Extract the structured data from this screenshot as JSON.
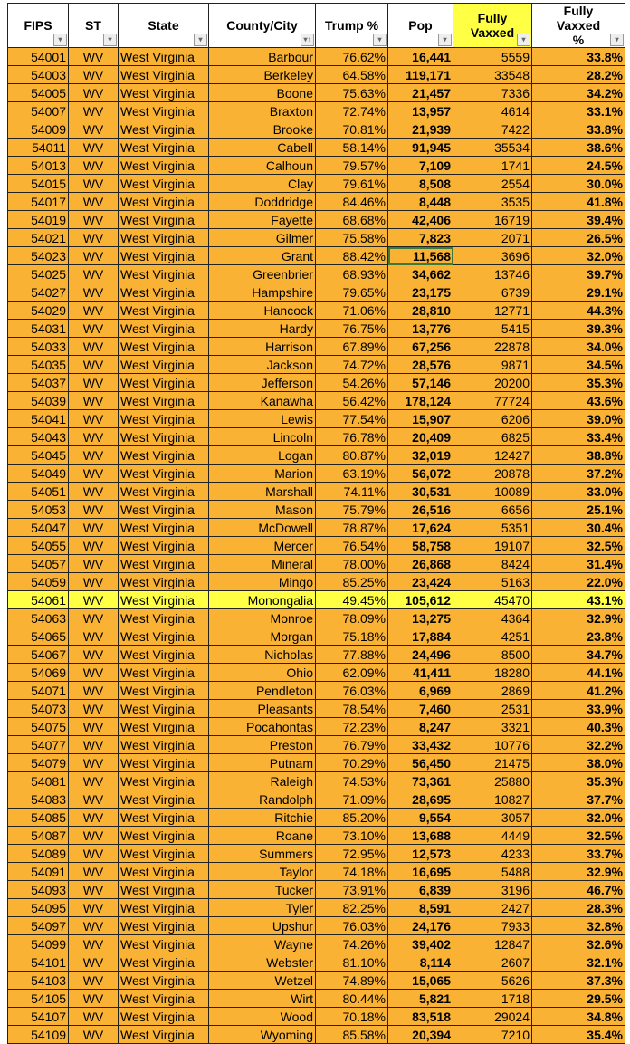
{
  "columns": [
    "FIPS",
    "ST",
    "State",
    "County/City",
    "Trump %",
    "Pop",
    "Fully Vaxxed",
    "Fully Vaxxed %"
  ],
  "highlight_color": "#ffff44",
  "row_color": "#f9b234",
  "highlighted_row": "Monongalia",
  "selected_cell": {
    "county": "Grant",
    "column": "Pop"
  },
  "rows": [
    [
      "54001",
      "WV",
      "West Virginia",
      "Barbour",
      "76.62%",
      "16,441",
      "5559",
      "33.8%"
    ],
    [
      "54003",
      "WV",
      "West Virginia",
      "Berkeley",
      "64.58%",
      "119,171",
      "33548",
      "28.2%"
    ],
    [
      "54005",
      "WV",
      "West Virginia",
      "Boone",
      "75.63%",
      "21,457",
      "7336",
      "34.2%"
    ],
    [
      "54007",
      "WV",
      "West Virginia",
      "Braxton",
      "72.74%",
      "13,957",
      "4614",
      "33.1%"
    ],
    [
      "54009",
      "WV",
      "West Virginia",
      "Brooke",
      "70.81%",
      "21,939",
      "7422",
      "33.8%"
    ],
    [
      "54011",
      "WV",
      "West Virginia",
      "Cabell",
      "58.14%",
      "91,945",
      "35534",
      "38.6%"
    ],
    [
      "54013",
      "WV",
      "West Virginia",
      "Calhoun",
      "79.57%",
      "7,109",
      "1741",
      "24.5%"
    ],
    [
      "54015",
      "WV",
      "West Virginia",
      "Clay",
      "79.61%",
      "8,508",
      "2554",
      "30.0%"
    ],
    [
      "54017",
      "WV",
      "West Virginia",
      "Doddridge",
      "84.46%",
      "8,448",
      "3535",
      "41.8%"
    ],
    [
      "54019",
      "WV",
      "West Virginia",
      "Fayette",
      "68.68%",
      "42,406",
      "16719",
      "39.4%"
    ],
    [
      "54021",
      "WV",
      "West Virginia",
      "Gilmer",
      "75.58%",
      "7,823",
      "2071",
      "26.5%"
    ],
    [
      "54023",
      "WV",
      "West Virginia",
      "Grant",
      "88.42%",
      "11,568",
      "3696",
      "32.0%"
    ],
    [
      "54025",
      "WV",
      "West Virginia",
      "Greenbrier",
      "68.93%",
      "34,662",
      "13746",
      "39.7%"
    ],
    [
      "54027",
      "WV",
      "West Virginia",
      "Hampshire",
      "79.65%",
      "23,175",
      "6739",
      "29.1%"
    ],
    [
      "54029",
      "WV",
      "West Virginia",
      "Hancock",
      "71.06%",
      "28,810",
      "12771",
      "44.3%"
    ],
    [
      "54031",
      "WV",
      "West Virginia",
      "Hardy",
      "76.75%",
      "13,776",
      "5415",
      "39.3%"
    ],
    [
      "54033",
      "WV",
      "West Virginia",
      "Harrison",
      "67.89%",
      "67,256",
      "22878",
      "34.0%"
    ],
    [
      "54035",
      "WV",
      "West Virginia",
      "Jackson",
      "74.72%",
      "28,576",
      "9871",
      "34.5%"
    ],
    [
      "54037",
      "WV",
      "West Virginia",
      "Jefferson",
      "54.26%",
      "57,146",
      "20200",
      "35.3%"
    ],
    [
      "54039",
      "WV",
      "West Virginia",
      "Kanawha",
      "56.42%",
      "178,124",
      "77724",
      "43.6%"
    ],
    [
      "54041",
      "WV",
      "West Virginia",
      "Lewis",
      "77.54%",
      "15,907",
      "6206",
      "39.0%"
    ],
    [
      "54043",
      "WV",
      "West Virginia",
      "Lincoln",
      "76.78%",
      "20,409",
      "6825",
      "33.4%"
    ],
    [
      "54045",
      "WV",
      "West Virginia",
      "Logan",
      "80.87%",
      "32,019",
      "12427",
      "38.8%"
    ],
    [
      "54049",
      "WV",
      "West Virginia",
      "Marion",
      "63.19%",
      "56,072",
      "20878",
      "37.2%"
    ],
    [
      "54051",
      "WV",
      "West Virginia",
      "Marshall",
      "74.11%",
      "30,531",
      "10089",
      "33.0%"
    ],
    [
      "54053",
      "WV",
      "West Virginia",
      "Mason",
      "75.79%",
      "26,516",
      "6656",
      "25.1%"
    ],
    [
      "54047",
      "WV",
      "West Virginia",
      "McDowell",
      "78.87%",
      "17,624",
      "5351",
      "30.4%"
    ],
    [
      "54055",
      "WV",
      "West Virginia",
      "Mercer",
      "76.54%",
      "58,758",
      "19107",
      "32.5%"
    ],
    [
      "54057",
      "WV",
      "West Virginia",
      "Mineral",
      "78.00%",
      "26,868",
      "8424",
      "31.4%"
    ],
    [
      "54059",
      "WV",
      "West Virginia",
      "Mingo",
      "85.25%",
      "23,424",
      "5163",
      "22.0%"
    ],
    [
      "54061",
      "WV",
      "West Virginia",
      "Monongalia",
      "49.45%",
      "105,612",
      "45470",
      "43.1%"
    ],
    [
      "54063",
      "WV",
      "West Virginia",
      "Monroe",
      "78.09%",
      "13,275",
      "4364",
      "32.9%"
    ],
    [
      "54065",
      "WV",
      "West Virginia",
      "Morgan",
      "75.18%",
      "17,884",
      "4251",
      "23.8%"
    ],
    [
      "54067",
      "WV",
      "West Virginia",
      "Nicholas",
      "77.88%",
      "24,496",
      "8500",
      "34.7%"
    ],
    [
      "54069",
      "WV",
      "West Virginia",
      "Ohio",
      "62.09%",
      "41,411",
      "18280",
      "44.1%"
    ],
    [
      "54071",
      "WV",
      "West Virginia",
      "Pendleton",
      "76.03%",
      "6,969",
      "2869",
      "41.2%"
    ],
    [
      "54073",
      "WV",
      "West Virginia",
      "Pleasants",
      "78.54%",
      "7,460",
      "2531",
      "33.9%"
    ],
    [
      "54075",
      "WV",
      "West Virginia",
      "Pocahontas",
      "72.23%",
      "8,247",
      "3321",
      "40.3%"
    ],
    [
      "54077",
      "WV",
      "West Virginia",
      "Preston",
      "76.79%",
      "33,432",
      "10776",
      "32.2%"
    ],
    [
      "54079",
      "WV",
      "West Virginia",
      "Putnam",
      "70.29%",
      "56,450",
      "21475",
      "38.0%"
    ],
    [
      "54081",
      "WV",
      "West Virginia",
      "Raleigh",
      "74.53%",
      "73,361",
      "25880",
      "35.3%"
    ],
    [
      "54083",
      "WV",
      "West Virginia",
      "Randolph",
      "71.09%",
      "28,695",
      "10827",
      "37.7%"
    ],
    [
      "54085",
      "WV",
      "West Virginia",
      "Ritchie",
      "85.20%",
      "9,554",
      "3057",
      "32.0%"
    ],
    [
      "54087",
      "WV",
      "West Virginia",
      "Roane",
      "73.10%",
      "13,688",
      "4449",
      "32.5%"
    ],
    [
      "54089",
      "WV",
      "West Virginia",
      "Summers",
      "72.95%",
      "12,573",
      "4233",
      "33.7%"
    ],
    [
      "54091",
      "WV",
      "West Virginia",
      "Taylor",
      "74.18%",
      "16,695",
      "5488",
      "32.9%"
    ],
    [
      "54093",
      "WV",
      "West Virginia",
      "Tucker",
      "73.91%",
      "6,839",
      "3196",
      "46.7%"
    ],
    [
      "54095",
      "WV",
      "West Virginia",
      "Tyler",
      "82.25%",
      "8,591",
      "2427",
      "28.3%"
    ],
    [
      "54097",
      "WV",
      "West Virginia",
      "Upshur",
      "76.03%",
      "24,176",
      "7933",
      "32.8%"
    ],
    [
      "54099",
      "WV",
      "West Virginia",
      "Wayne",
      "74.26%",
      "39,402",
      "12847",
      "32.6%"
    ],
    [
      "54101",
      "WV",
      "West Virginia",
      "Webster",
      "81.10%",
      "8,114",
      "2607",
      "32.1%"
    ],
    [
      "54103",
      "WV",
      "West Virginia",
      "Wetzel",
      "74.89%",
      "15,065",
      "5626",
      "37.3%"
    ],
    [
      "54105",
      "WV",
      "West Virginia",
      "Wirt",
      "80.44%",
      "5,821",
      "1718",
      "29.5%"
    ],
    [
      "54107",
      "WV",
      "West Virginia",
      "Wood",
      "70.18%",
      "83,518",
      "29024",
      "34.8%"
    ],
    [
      "54109",
      "WV",
      "West Virginia",
      "Wyoming",
      "85.58%",
      "20,394",
      "7210",
      "35.4%"
    ]
  ]
}
